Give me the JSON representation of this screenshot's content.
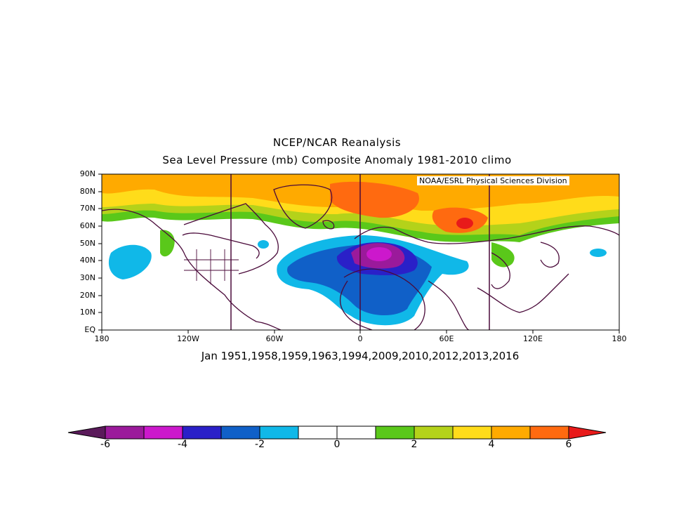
{
  "title_line1": "NCEP/NCAR Reanalysis",
  "title_line2": "Sea Level Pressure (mb) Composite Anomaly 1981-2010 climo",
  "credit": "NOAA/ESRL Physical Sciences Division",
  "subtitle": "Jan 1951,1958,1959,1963,1994,2009,2010,2012,2013,2016",
  "lat_ticks": [
    "90N",
    "80N",
    "70N",
    "60N",
    "50N",
    "40N",
    "30N",
    "20N",
    "10N",
    "EQ"
  ],
  "lon_ticks": [
    "180",
    "120W",
    "60W",
    "0",
    "60E",
    "120E",
    "180"
  ],
  "colorbar": {
    "labels": [
      "-6",
      "-4",
      "-2",
      "0",
      "2",
      "4",
      "6"
    ],
    "colors": [
      "#5a1a5a",
      "#9b1a9b",
      "#cc18cc",
      "#2a20c8",
      "#1060c8",
      "#10b8e8",
      "#ffffff",
      "#ffffff",
      "#5ac81a",
      "#b4d21a",
      "#ffdc1a",
      "#ffaa00",
      "#ff6a10",
      "#e81a1a"
    ]
  },
  "map_colors": {
    "orange": "#ffaa00",
    "orange_red": "#ff6a10",
    "red": "#e81a1a",
    "yellow": "#ffdc1a",
    "yellow_green": "#b4d21a",
    "green": "#5ac81a",
    "cyan": "#10b8e8",
    "blue": "#1060c8",
    "dark_blue": "#2a20c8",
    "purple": "#9b1a9b",
    "magenta": "#cc18cc",
    "coast": "#4a0a3a"
  }
}
